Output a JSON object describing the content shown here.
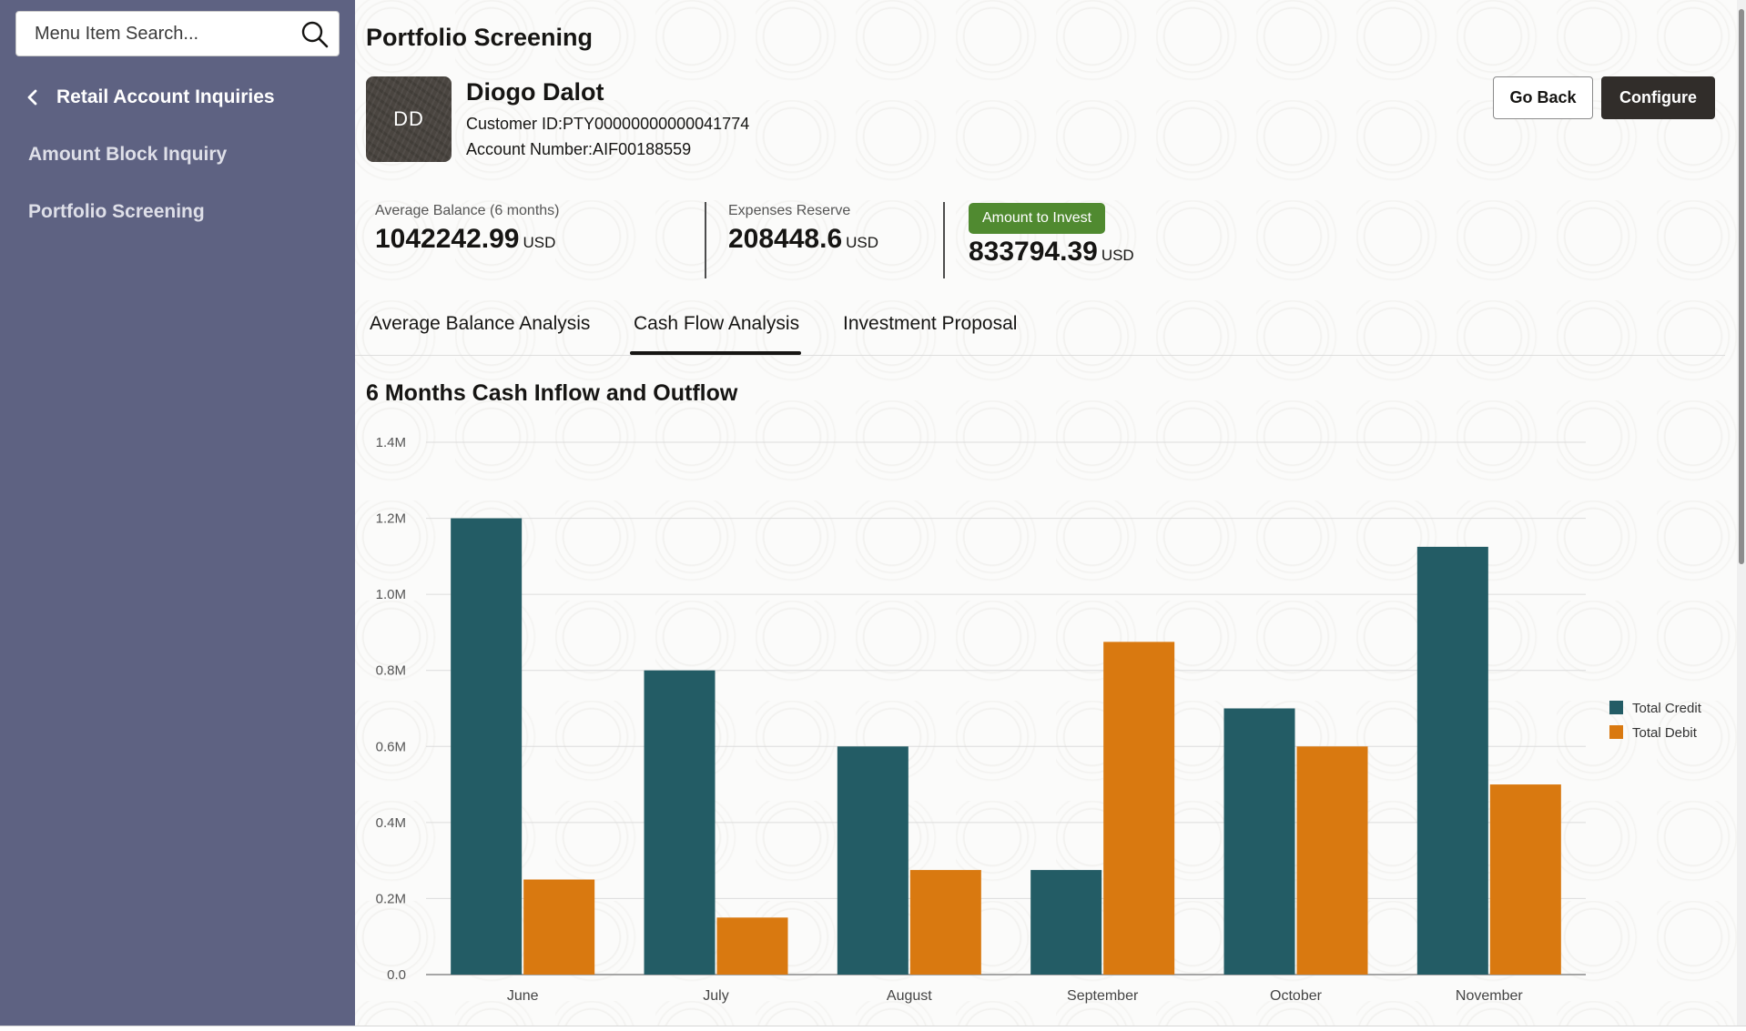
{
  "sidebar": {
    "search_placeholder": "Menu Item Search...",
    "back_label": "Retail Account Inquiries",
    "items": [
      {
        "label": "Amount Block Inquiry"
      },
      {
        "label": "Portfolio Screening"
      }
    ]
  },
  "page": {
    "title": "Portfolio Screening"
  },
  "customer": {
    "initials": "DD",
    "name": "Diogo Dalot",
    "customer_id": "Customer ID:PTY00000000000041774",
    "account_number": "Account Number:AIF00188559"
  },
  "actions": {
    "go_back": "Go Back",
    "configure": "Configure"
  },
  "metrics": {
    "avg_balance": {
      "label": "Average Balance (6 months)",
      "value": "1042242.99",
      "unit": "USD"
    },
    "expenses_reserve": {
      "label": "Expenses Reserve",
      "value": "208448.6",
      "unit": "USD"
    },
    "amount_to_invest": {
      "label": "Amount to Invest",
      "value": "833794.39",
      "unit": "USD"
    }
  },
  "colors": {
    "credit": "#235c65",
    "debit": "#d97910",
    "invest_badge": "#508a30"
  },
  "tabs": [
    {
      "label": "Average Balance Analysis",
      "active": false
    },
    {
      "label": "Cash Flow Analysis",
      "active": true
    },
    {
      "label": "Investment Proposal",
      "active": false
    }
  ],
  "chart_title": "6 Months Cash Inflow and Outflow",
  "chart_data": {
    "type": "bar",
    "title": "6 Months Cash Inflow and Outflow",
    "categories": [
      "June",
      "July",
      "August",
      "September",
      "October",
      "November"
    ],
    "series": [
      {
        "name": "Total Credit",
        "values": [
          1200000,
          800000,
          600000,
          275000,
          700000,
          1125000
        ]
      },
      {
        "name": "Total Debit",
        "values": [
          250000,
          150000,
          275000,
          875000,
          600000,
          500000
        ]
      }
    ],
    "ylim": [
      0,
      1400000
    ],
    "yticks": [
      {
        "value": 0,
        "label": "0.0"
      },
      {
        "value": 200000,
        "label": "0.2M"
      },
      {
        "value": 400000,
        "label": "0.4M"
      },
      {
        "value": 600000,
        "label": "0.6M"
      },
      {
        "value": 800000,
        "label": "0.8M"
      },
      {
        "value": 1000000,
        "label": "1.0M"
      },
      {
        "value": 1200000,
        "label": "1.2M"
      },
      {
        "value": 1400000,
        "label": "1.4M"
      }
    ],
    "grid": true,
    "legend": "right"
  }
}
